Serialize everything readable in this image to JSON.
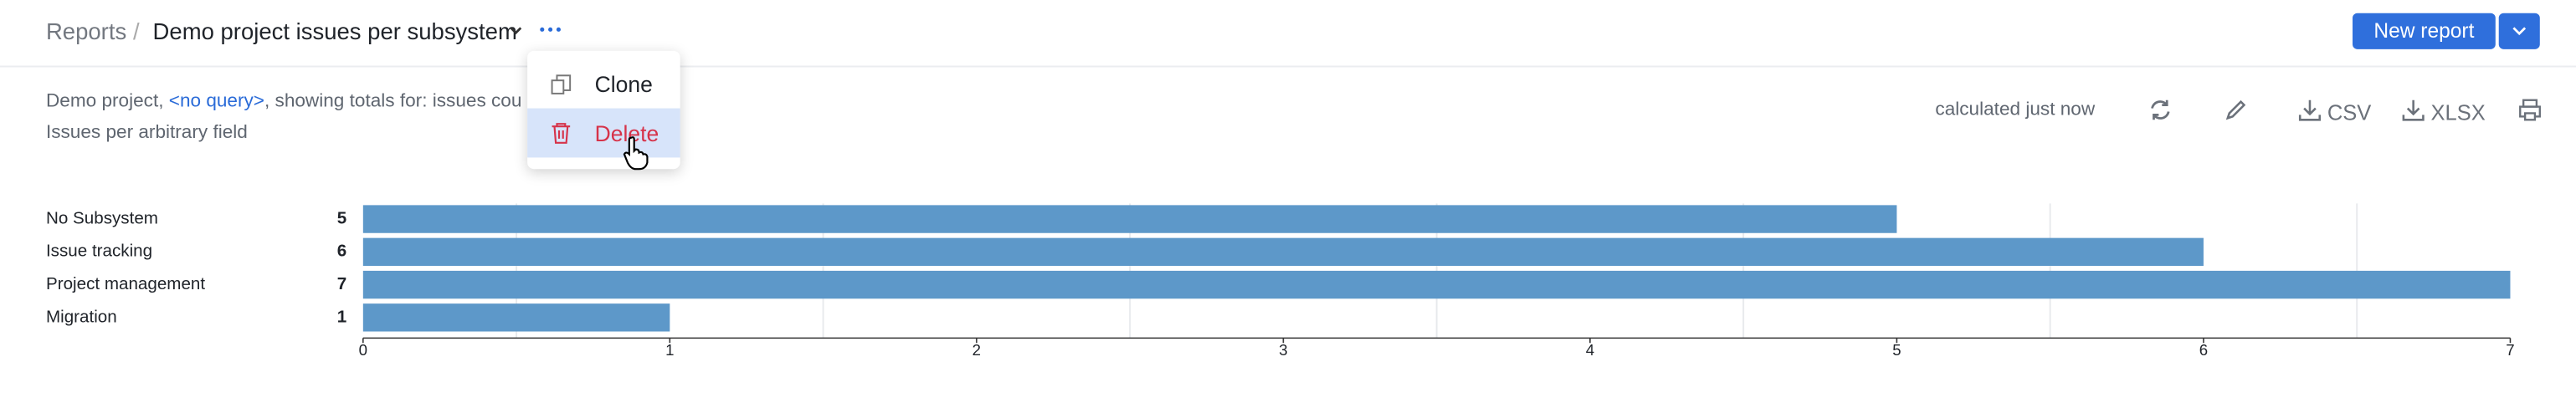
{
  "header": {
    "root": "Reports",
    "separator": "/",
    "title": "Demo project issues per subsystem",
    "new_report": "New report"
  },
  "menu": {
    "items": [
      "Clone",
      "Delete"
    ]
  },
  "info": {
    "prefix": "Demo project, ",
    "query": "<no query>",
    "suffix": ", showing totals for: issues cou",
    "subtitle": "Issues per arbitrary field"
  },
  "toolbar": {
    "status": "calculated just now",
    "csv": "CSV",
    "xlsx": "XLSX"
  },
  "chart_data": {
    "type": "hbar",
    "categories": [
      "No Subsystem",
      "Issue tracking",
      "Project management",
      "Migration"
    ],
    "values": [
      5,
      6,
      7,
      1
    ],
    "color": "#5d98c9",
    "xlim": [
      0,
      7
    ],
    "xticks": [
      0,
      1,
      2,
      3,
      4,
      5,
      6,
      7
    ],
    "xgrid": [
      0.5,
      1.5,
      2.5,
      3.5,
      4.5,
      5.5,
      6.5
    ]
  }
}
